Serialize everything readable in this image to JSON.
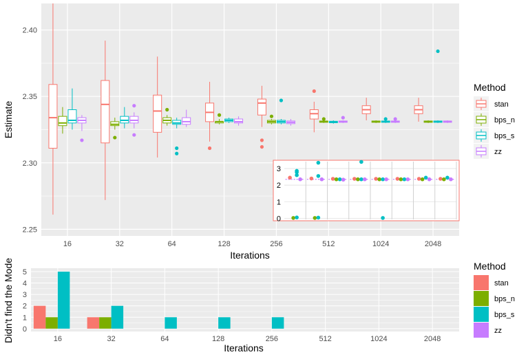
{
  "colors": {
    "stan": "#F8766D",
    "bps_n": "#7CAE00",
    "bps_s": "#00BFC4",
    "zz": "#C77CFF",
    "panel": "#EBEBEB",
    "grid": "#FFFFFF",
    "text": "#4D4D4D",
    "title": "#000000"
  },
  "chart_data": [
    {
      "type": "boxplot",
      "xlabel": "Iterations",
      "ylabel": "Estimate",
      "categories": [
        "16",
        "32",
        "64",
        "128",
        "256",
        "512",
        "1024",
        "2048"
      ],
      "ylim": [
        2.245,
        2.42
      ],
      "yticks": [
        2.25,
        2.3,
        2.35,
        2.4
      ],
      "ytick_labels": [
        "2.25",
        "2.30",
        "2.35",
        "2.40"
      ],
      "legend": {
        "title": "Method",
        "position": "right",
        "entries": [
          "stan",
          "bps_n",
          "bps_s",
          "zz"
        ]
      },
      "series": [
        {
          "name": "stan",
          "boxes": [
            {
              "lo": 2.261,
              "q1": 2.311,
              "med": 2.334,
              "q3": 2.359,
              "hi": 2.42,
              "out": []
            },
            {
              "lo": 2.272,
              "q1": 2.315,
              "med": 2.344,
              "q3": 2.362,
              "hi": 2.392,
              "out": []
            },
            {
              "lo": 2.304,
              "q1": 2.323,
              "med": 2.339,
              "q3": 2.351,
              "hi": 2.38,
              "out": []
            },
            {
              "lo": 2.316,
              "q1": 2.331,
              "med": 2.338,
              "q3": 2.345,
              "hi": 2.361,
              "out": [
                2.311
              ]
            },
            {
              "lo": 2.327,
              "q1": 2.336,
              "med": 2.345,
              "q3": 2.348,
              "hi": 2.358,
              "out": [
                2.317,
                2.312
              ]
            },
            {
              "lo": 2.323,
              "q1": 2.333,
              "med": 2.337,
              "q3": 2.34,
              "hi": 2.346,
              "out": [
                2.354
              ]
            },
            {
              "lo": 2.332,
              "q1": 2.337,
              "med": 2.34,
              "q3": 2.343,
              "hi": 2.349,
              "out": []
            },
            {
              "lo": 2.331,
              "q1": 2.337,
              "med": 2.34,
              "q3": 2.343,
              "hi": 2.349,
              "out": []
            }
          ]
        },
        {
          "name": "bps_n",
          "boxes": [
            {
              "lo": 2.322,
              "q1": 2.328,
              "med": 2.33,
              "q3": 2.335,
              "hi": 2.342,
              "out": []
            },
            {
              "lo": 2.325,
              "q1": 2.328,
              "med": 2.329,
              "q3": 2.331,
              "hi": 2.334,
              "out": [
                2.319
              ]
            },
            {
              "lo": 2.328,
              "q1": 2.33,
              "med": 2.332,
              "q3": 2.334,
              "hi": 2.336,
              "out": [
                2.34
              ]
            },
            {
              "lo": 2.329,
              "q1": 2.33,
              "med": 2.331,
              "q3": 2.331,
              "hi": 2.333,
              "out": [
                2.336
              ]
            },
            {
              "lo": 2.329,
              "q1": 2.33,
              "med": 2.331,
              "q3": 2.332,
              "hi": 2.333,
              "out": [
                2.335
              ]
            },
            {
              "lo": 2.33,
              "q1": 2.3305,
              "med": 2.331,
              "q3": 2.3315,
              "hi": 2.332,
              "out": [
                2.333
              ]
            },
            {
              "lo": 2.33,
              "q1": 2.3305,
              "med": 2.331,
              "q3": 2.3315,
              "hi": 2.332,
              "out": []
            },
            {
              "lo": 2.33,
              "q1": 2.3305,
              "med": 2.331,
              "q3": 2.3315,
              "hi": 2.332,
              "out": []
            }
          ]
        },
        {
          "name": "bps_s",
          "boxes": [
            {
              "lo": 2.325,
              "q1": 2.33,
              "med": 2.332,
              "q3": 2.34,
              "hi": 2.356,
              "out": []
            },
            {
              "lo": 2.326,
              "q1": 2.33,
              "med": 2.332,
              "q3": 2.335,
              "hi": 2.342,
              "out": []
            },
            {
              "lo": 2.326,
              "q1": 2.329,
              "med": 2.33,
              "q3": 2.332,
              "hi": 2.334,
              "out": [
                2.311,
                2.307
              ]
            },
            {
              "lo": 2.33,
              "q1": 2.331,
              "med": 2.332,
              "q3": 2.333,
              "hi": 2.334,
              "out": []
            },
            {
              "lo": 2.329,
              "q1": 2.33,
              "med": 2.331,
              "q3": 2.332,
              "hi": 2.333,
              "out": [
                2.347
              ]
            },
            {
              "lo": 2.3295,
              "q1": 2.3302,
              "med": 2.3308,
              "q3": 2.3313,
              "hi": 2.332,
              "out": []
            },
            {
              "lo": 2.33,
              "q1": 2.3305,
              "med": 2.331,
              "q3": 2.3315,
              "hi": 2.332,
              "out": [
                2.333
              ]
            },
            {
              "lo": 2.33,
              "q1": 2.3305,
              "med": 2.331,
              "q3": 2.3315,
              "hi": 2.332,
              "out": [
                2.384
              ]
            }
          ]
        },
        {
          "name": "zz",
          "boxes": [
            {
              "lo": 2.324,
              "q1": 2.33,
              "med": 2.332,
              "q3": 2.334,
              "hi": 2.336,
              "out": [
                2.317
              ]
            },
            {
              "lo": 2.326,
              "q1": 2.33,
              "med": 2.332,
              "q3": 2.335,
              "hi": 2.338,
              "out": [
                2.343,
                2.321
              ]
            },
            {
              "lo": 2.327,
              "q1": 2.329,
              "med": 2.331,
              "q3": 2.334,
              "hi": 2.34,
              "out": []
            },
            {
              "lo": 2.328,
              "q1": 2.33,
              "med": 2.331,
              "q3": 2.333,
              "hi": 2.335,
              "out": []
            },
            {
              "lo": 2.328,
              "q1": 2.3295,
              "med": 2.3305,
              "q3": 2.3315,
              "hi": 2.333,
              "out": []
            },
            {
              "lo": 2.33,
              "q1": 2.3305,
              "med": 2.331,
              "q3": 2.3315,
              "hi": 2.332,
              "out": [
                2.334
              ]
            },
            {
              "lo": 2.33,
              "q1": 2.3305,
              "med": 2.331,
              "q3": 2.3315,
              "hi": 2.332,
              "out": [
                2.333
              ]
            },
            {
              "lo": 2.33,
              "q1": 2.3305,
              "med": 2.331,
              "q3": 2.3315,
              "hi": 2.332,
              "out": []
            }
          ]
        }
      ]
    },
    {
      "type": "scatter",
      "role": "inset",
      "ylim": [
        -0.15,
        3.5
      ],
      "yticks": [
        0,
        1,
        2,
        3
      ],
      "ytick_labels": [
        "0",
        "1",
        "2",
        "3"
      ],
      "categories": [
        "16",
        "32",
        "64",
        "128",
        "256",
        "512",
        "1024",
        "2048"
      ],
      "series": [
        {
          "name": "stan",
          "points": [
            [
              0,
              2.45
            ],
            [
              1,
              2.4
            ],
            [
              2,
              2.38
            ],
            [
              3,
              2.38
            ],
            [
              4,
              2.38
            ],
            [
              5,
              2.38
            ],
            [
              6,
              2.38
            ],
            [
              7,
              2.38
            ]
          ]
        },
        {
          "name": "bps_n",
          "points": [
            [
              0,
              0.02
            ],
            [
              1,
              0.02
            ],
            [
              2,
              2.35
            ],
            [
              3,
              2.35
            ],
            [
              4,
              2.35
            ],
            [
              5,
              2.35
            ],
            [
              6,
              2.35
            ],
            [
              7,
              2.35
            ]
          ]
        },
        {
          "name": "bps_s",
          "points": [
            [
              0,
              0.05
            ],
            [
              0,
              2.6
            ],
            [
              0,
              2.78
            ],
            [
              0,
              2.86
            ],
            [
              1,
              0.04
            ],
            [
              1,
              2.55
            ],
            [
              1,
              3.35
            ],
            [
              2,
              2.35
            ],
            [
              3,
              3.4
            ],
            [
              3,
              2.35
            ],
            [
              4,
              0.02
            ],
            [
              4,
              2.35
            ],
            [
              5,
              2.35
            ],
            [
              6,
              2.45
            ],
            [
              7,
              2.45
            ]
          ]
        },
        {
          "name": "zz",
          "points": [
            [
              0,
              2.35
            ],
            [
              1,
              2.35
            ],
            [
              2,
              2.33
            ],
            [
              3,
              2.35
            ],
            [
              4,
              2.35
            ],
            [
              5,
              2.35
            ],
            [
              6,
              2.35
            ],
            [
              7,
              2.35
            ]
          ]
        }
      ]
    },
    {
      "type": "bar",
      "xlabel": "Iterations",
      "ylabel": "Didn't find the Mode",
      "categories": [
        "16",
        "32",
        "64",
        "128",
        "256",
        "512",
        "1024",
        "2048"
      ],
      "ylim": [
        -0.25,
        5.3
      ],
      "yticks": [
        0,
        1,
        2,
        3,
        4,
        5
      ],
      "ytick_labels": [
        "0",
        "1",
        "2",
        "3",
        "4",
        "5"
      ],
      "legend": {
        "title": "Method",
        "position": "right",
        "entries": [
          "stan",
          "bps_n",
          "bps_s",
          "zz"
        ]
      },
      "series": [
        {
          "name": "stan",
          "values": [
            2,
            1,
            0,
            0,
            0,
            0,
            0,
            0
          ]
        },
        {
          "name": "bps_n",
          "values": [
            1,
            1,
            0,
            0,
            0,
            0,
            0,
            0
          ]
        },
        {
          "name": "bps_s",
          "values": [
            5,
            2,
            1,
            1,
            1,
            0,
            0,
            0
          ]
        },
        {
          "name": "zz",
          "values": [
            0,
            0,
            0,
            0,
            0,
            0,
            0,
            0
          ]
        }
      ]
    }
  ]
}
